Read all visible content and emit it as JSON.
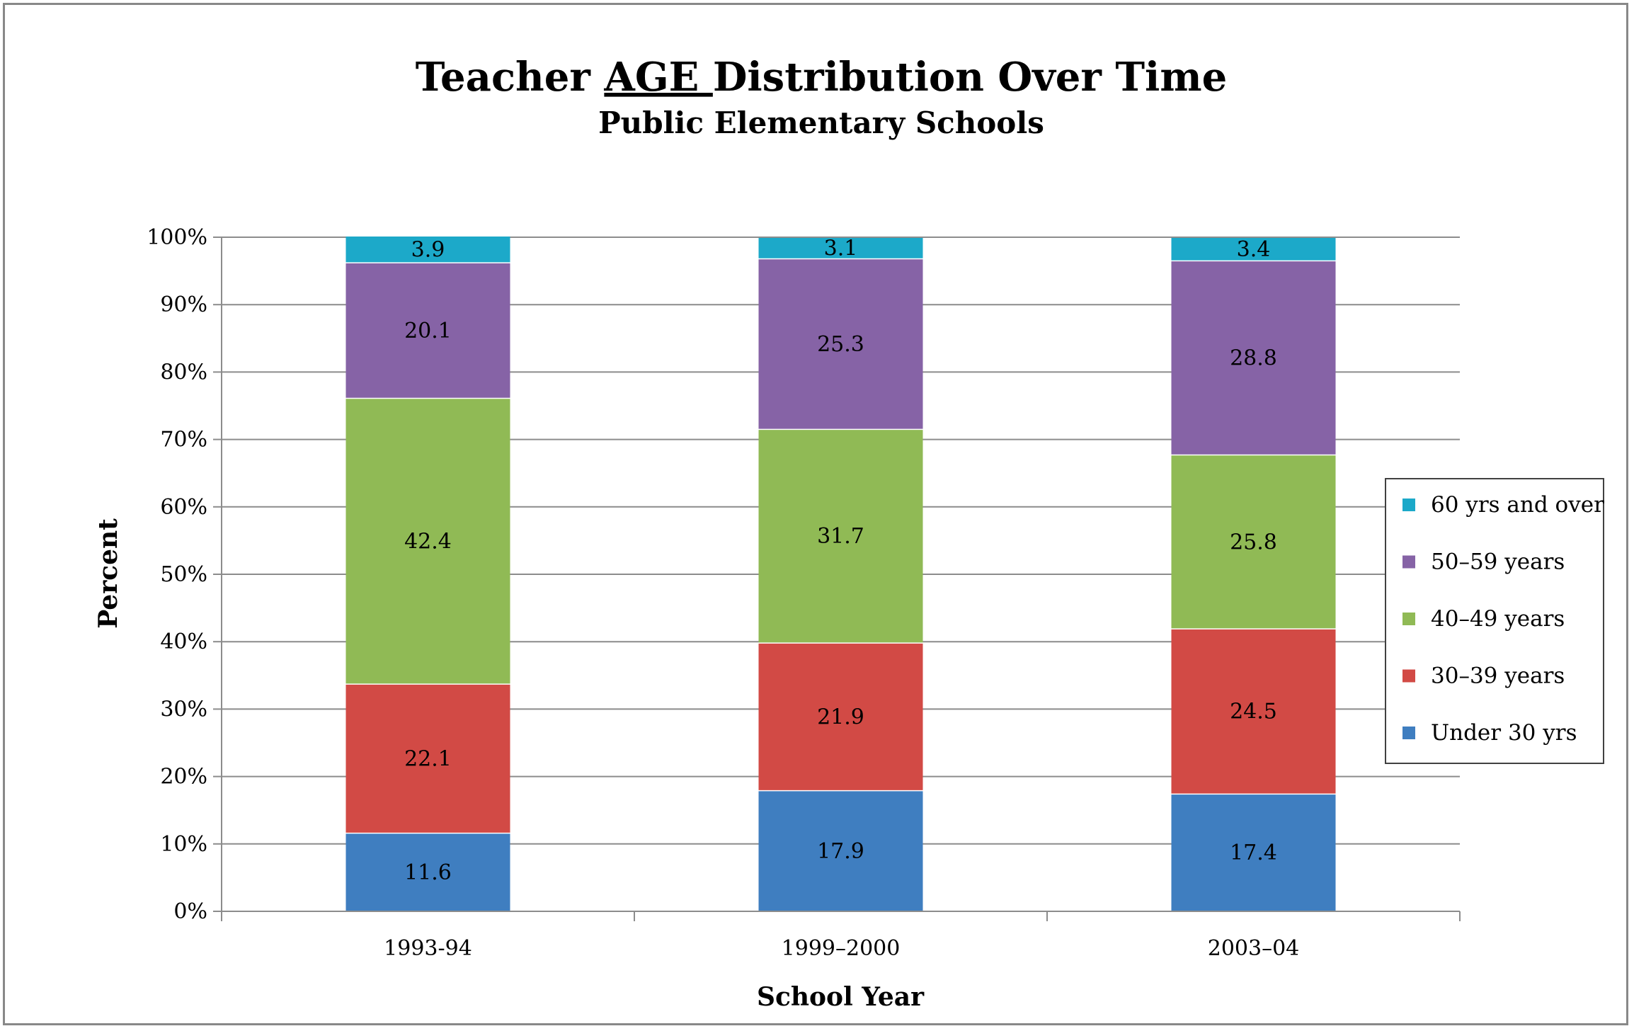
{
  "chart_data": {
    "type": "bar",
    "stacked": true,
    "title_parts": [
      "Teacher ",
      "AGE ",
      "Distribution Over Time"
    ],
    "subtitle": "Public Elementary Schools",
    "xlabel": "School Year",
    "ylabel": "Percent",
    "ylim": [
      0,
      100
    ],
    "y_ticks": [
      0,
      10,
      20,
      30,
      40,
      50,
      60,
      70,
      80,
      90,
      100
    ],
    "y_tick_labels": [
      "0%",
      "10%",
      "20%",
      "30%",
      "40%",
      "50%",
      "60%",
      "70%",
      "80%",
      "90%",
      "100%"
    ],
    "categories": [
      "1993-94",
      "1999–2000",
      "2003–04"
    ],
    "grid": true,
    "legend_position": "right",
    "series": [
      {
        "name": "Under 30 yrs",
        "color": "#3F7EC0",
        "values": [
          11.6,
          17.9,
          17.4
        ]
      },
      {
        "name": "30–39 years",
        "color": "#D24A45",
        "values": [
          22.1,
          21.9,
          24.5
        ]
      },
      {
        "name": "40–49 years",
        "color": "#90BA55",
        "values": [
          42.4,
          31.7,
          25.8
        ]
      },
      {
        "name": "50–59 years",
        "color": "#8663A6",
        "values": [
          20.1,
          25.3,
          28.8
        ]
      },
      {
        "name": "60 yrs and over",
        "color": "#1CA9C9",
        "values": [
          3.9,
          3.1,
          3.4
        ]
      }
    ]
  }
}
